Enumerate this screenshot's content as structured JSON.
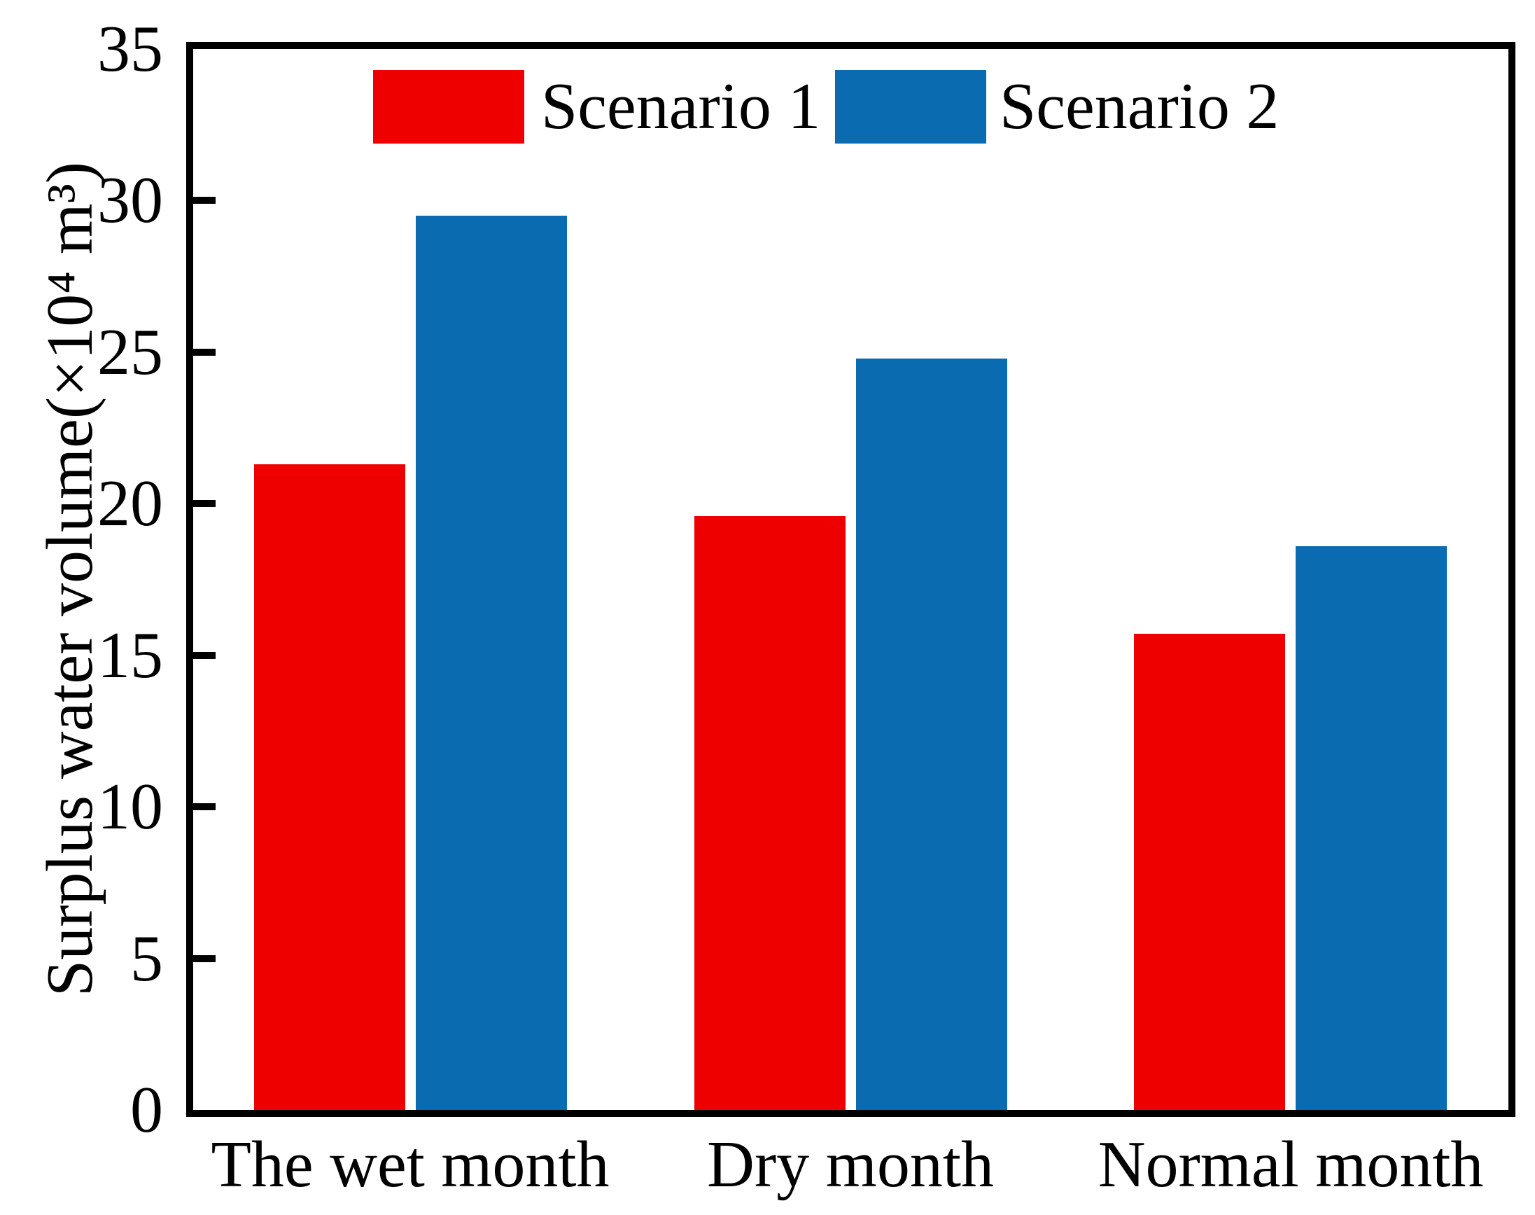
{
  "chart_data": {
    "type": "bar",
    "title": "",
    "categories": [
      "The wet month",
      "Dry month",
      "Normal month"
    ],
    "series": [
      {
        "name": "Scenario 1",
        "color": "#ee0000",
        "values": [
          21.3,
          19.6,
          15.7
        ]
      },
      {
        "name": "Scenario 2",
        "color": "#0a6bb0",
        "values": [
          29.5,
          24.8,
          18.6
        ]
      }
    ],
    "ylabel": "Surplus water volume(×10⁴ m³)",
    "xlabel": "",
    "ylim": [
      0,
      35
    ],
    "yticks": [
      0,
      5,
      10,
      15,
      20,
      25,
      30,
      35
    ],
    "inner_yticks": [
      5,
      10,
      15,
      20,
      25,
      30
    ],
    "grid": false,
    "legend_position": "top-inside",
    "axis_color": "#000000",
    "background_color": "#ffffff"
  }
}
